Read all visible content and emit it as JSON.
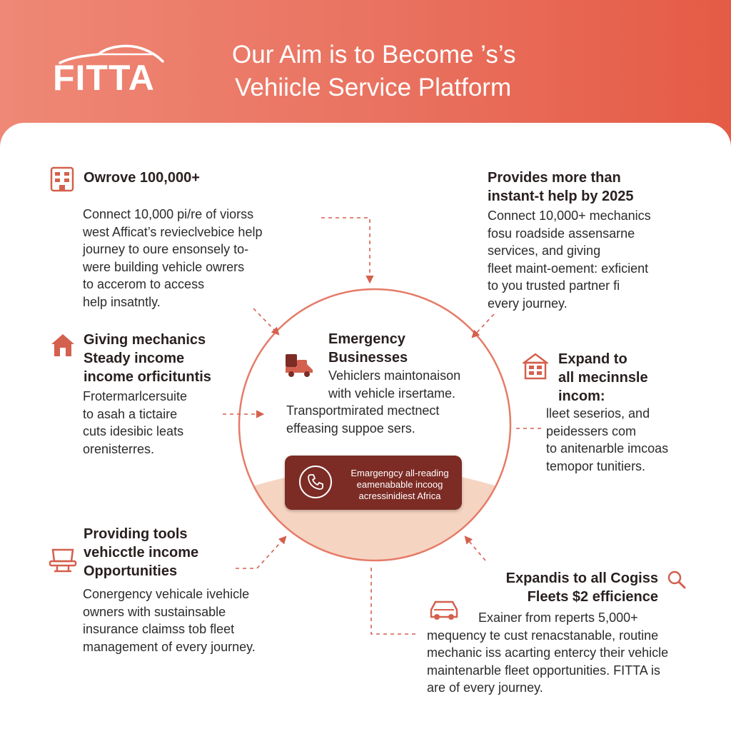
{
  "colors": {
    "accent": "#e9715f",
    "dark_red": "#7c2c25",
    "peach": "#f6d4c2",
    "icon": "#d4604e"
  },
  "header": {
    "logo": "FITTA",
    "headline_line1": "Our Aim is to Become ’s’s",
    "headline_line2": "Vehiicle Service Platform"
  },
  "top_left": {
    "icon": "building-icon",
    "title": "Owrove 100,000+",
    "body": [
      "Connect 10,000 pi/re of viorss",
      "west Afficat’s revieclvebice help",
      "journey to oure ensonsely to-",
      "were building vehicle owrers",
      "to accerom to access",
      "help insatntly."
    ]
  },
  "top_right": {
    "title": [
      "Provides more than",
      "instant-t help  by 2025"
    ],
    "body": [
      "Connect 10,000+ mechanics",
      "fosu roadside assensarne",
      "services, and giving",
      "fleet maint-oement: exficient",
      "to you trusted partner fi",
      "every journey."
    ]
  },
  "mid_left": {
    "icon": "house-icon",
    "title": [
      "Giving  mechanics",
      "Steady income",
      "income orficituntis"
    ],
    "body": [
      "Frotermarlcersuite",
      "to asah a tictaire",
      "cuts idesibic leats",
      "orenisterres."
    ]
  },
  "mid_right": {
    "icon": "shop-icon",
    "title": [
      "Expand to",
      "all mecinnsle",
      "incom:"
    ],
    "body": [
      "lleet seserios, and",
      "peidessers com",
      "to anitenarble imcoas",
      "temopor tunitiers."
    ]
  },
  "center": {
    "icon": "tow-truck-icon",
    "title": [
      "Emergency",
      "Businesses"
    ],
    "body_short": [
      "Vehiclers maintonaison",
      "with vehicle irsertame."
    ],
    "body_wide": [
      "Transportmirated mectnect",
      "effeasing suppoe sers."
    ],
    "cta_icon": "phone-icon",
    "cta_text": [
      "Emargengcy all-reading",
      "eamenabable incoog",
      "acressinidiest Africa"
    ]
  },
  "bottom_left": {
    "icon": "seat-icon",
    "title": [
      "Providing tools",
      "vehicctle income",
      "Opportunities"
    ],
    "body": [
      "Conergency vehicale ivehicle",
      "owners with sustainsable",
      "insurance claimss tob fleet",
      "management of every journey."
    ]
  },
  "bottom_right": {
    "icon": "car-icon",
    "search_icon": "search-icon",
    "title": [
      "Expandis to all Cogiss",
      "Fleets $2 efficience"
    ],
    "body": [
      "Exainer from reperts 5,000+",
      "mequency te cust renacstanable, routine",
      "mechanic iss acarting entercy their vehicle",
      "maintenarble fleet opportunities. FITTA is",
      "are of every journey."
    ]
  }
}
